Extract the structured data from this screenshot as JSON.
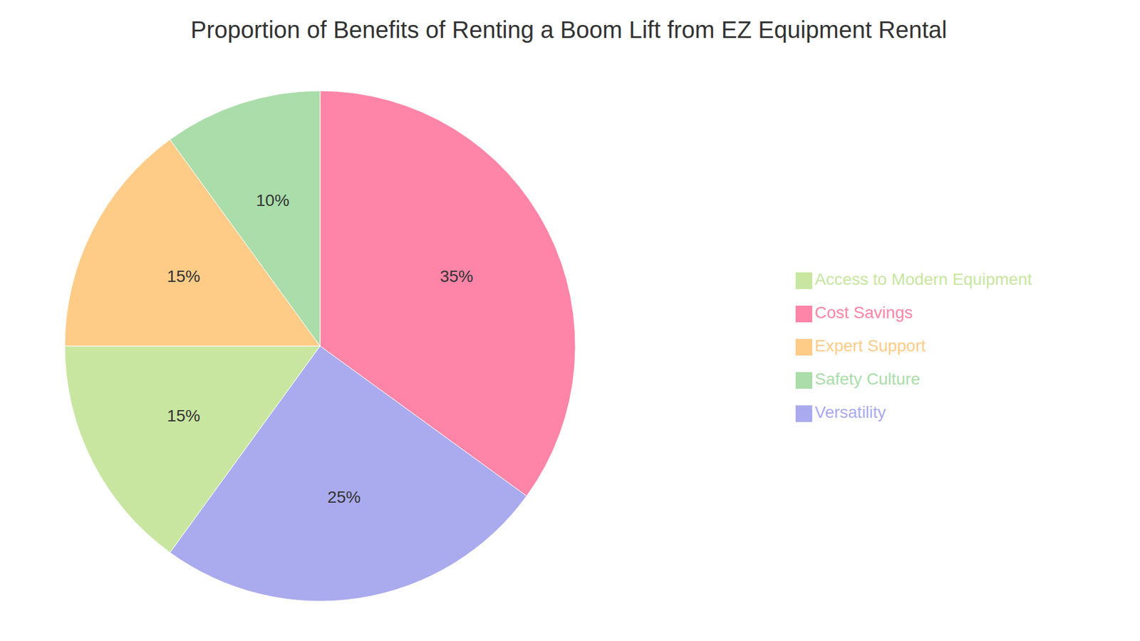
{
  "chart_data": {
    "type": "pie",
    "title": "Proportion of Benefits of Renting a Boom Lift from EZ Equipment Rental",
    "categories": [
      "Cost Savings",
      "Versatility",
      "Access to Modern Equipment",
      "Expert Support",
      "Safety Culture"
    ],
    "values": [
      35,
      25,
      15,
      15,
      10
    ],
    "value_labels": [
      "35%",
      "25%",
      "15%",
      "15%",
      "10%"
    ],
    "colors": [
      "#FF85A8",
      "#AAAAEE",
      "#C8E6A0",
      "#FFCC88",
      "#AADDAA"
    ],
    "data_labels": true,
    "legend": "right"
  }
}
